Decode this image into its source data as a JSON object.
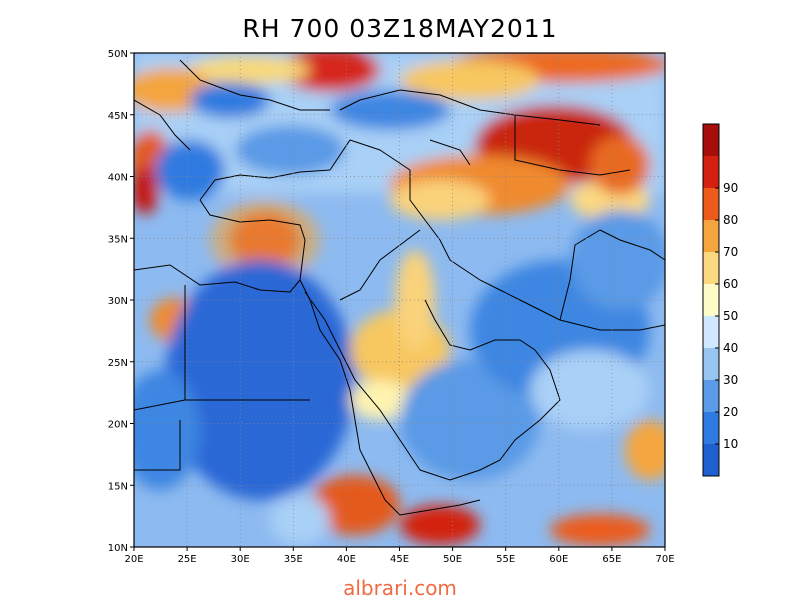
{
  "title": "RH 700 03Z18MAY2011",
  "footer": "albrari.com",
  "map": {
    "lat_labels": [
      "50N",
      "45N",
      "40N",
      "35N",
      "30N",
      "25N",
      "20N",
      "15N",
      "10N"
    ],
    "lon_labels": [
      "20E",
      "25E",
      "30E",
      "35E",
      "40E",
      "45E",
      "50E",
      "55E",
      "60E",
      "65E",
      "70E"
    ],
    "lat_range": [
      10,
      50
    ],
    "lon_range": [
      20,
      70
    ],
    "gridlines": "dotted"
  },
  "colorbar": {
    "labels": [
      "90",
      "80",
      "70",
      "60",
      "50",
      "40",
      "30",
      "20",
      "10"
    ],
    "levels": [
      0,
      10,
      20,
      30,
      40,
      50,
      60,
      70,
      80,
      90,
      100
    ],
    "colors": [
      "#1f5fd0",
      "#2f7ae0",
      "#5a9ae6",
      "#98c4f2",
      "#cfe7ff",
      "#fdfcc8",
      "#fcd880",
      "#f4a53d",
      "#ec5b1c",
      "#d3200f",
      "#a50e0a"
    ]
  }
}
